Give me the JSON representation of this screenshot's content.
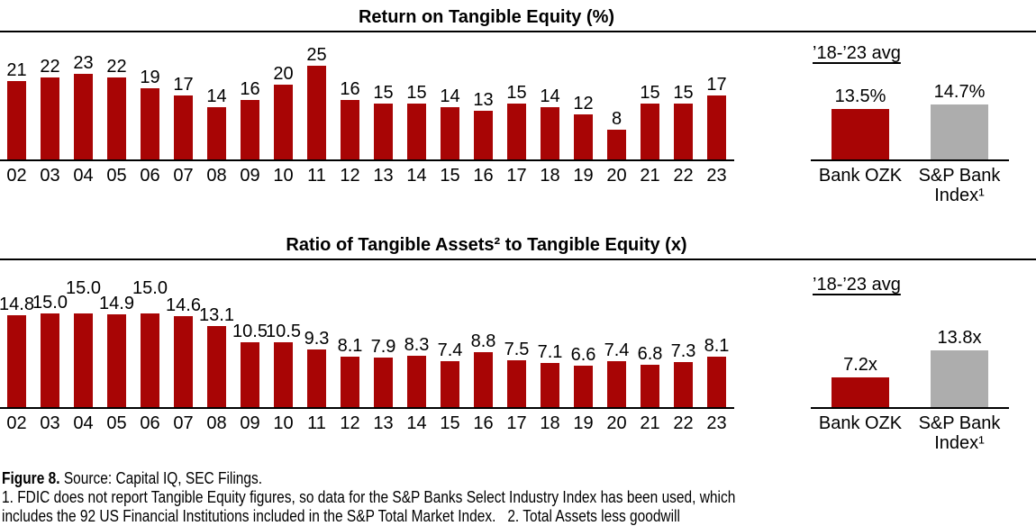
{
  "colors": {
    "bar_red": "#A80505",
    "bar_gray": "#ADADAD",
    "axis_black": "#000000"
  },
  "chart_data": [
    {
      "type": "bar",
      "title": "Return on Tangible Equity (%)",
      "categories": [
        "02",
        "03",
        "04",
        "05",
        "06",
        "07",
        "08",
        "09",
        "10",
        "11",
        "12",
        "13",
        "14",
        "15",
        "16",
        "17",
        "18",
        "19",
        "20",
        "21",
        "22",
        "23"
      ],
      "values": [
        21,
        22,
        23,
        22,
        19,
        17,
        14,
        16,
        20,
        25,
        16,
        15,
        15,
        14,
        13,
        15,
        14,
        12,
        8,
        15,
        15,
        17
      ],
      "value_labels": [
        "21",
        "22",
        "23",
        "22",
        "19",
        "17",
        "14",
        "16",
        "20",
        "25",
        "16",
        "15",
        "15",
        "14",
        "13",
        "15",
        "14",
        "12",
        "8",
        "15",
        "15",
        "17"
      ],
      "raised_label_indices": [],
      "xlabel": "",
      "ylabel": "",
      "ylim": [
        0,
        25
      ],
      "grid": false,
      "bar_color": "#A80505",
      "avg_panel": {
        "heading": "’18-’23 avg",
        "bars": [
          {
            "label": "Bank OZK",
            "value": 13.5,
            "display": "13.5%",
            "color": "#A80505"
          },
          {
            "label": "S&P Bank Index¹",
            "value": 14.7,
            "display": "14.7%",
            "color": "#ADADAD"
          }
        ]
      }
    },
    {
      "type": "bar",
      "title": "Ratio of Tangible Assets² to Tangible Equity (x)",
      "categories": [
        "02",
        "03",
        "04",
        "05",
        "06",
        "07",
        "08",
        "09",
        "10",
        "11",
        "12",
        "13",
        "14",
        "15",
        "16",
        "17",
        "18",
        "19",
        "20",
        "21",
        "22",
        "23"
      ],
      "values": [
        14.8,
        15.0,
        15.0,
        14.9,
        15.0,
        14.6,
        13.1,
        10.5,
        10.5,
        9.3,
        8.1,
        7.9,
        8.3,
        7.4,
        8.8,
        7.5,
        7.1,
        6.6,
        7.4,
        6.8,
        7.3,
        8.1
      ],
      "value_labels": [
        "14.8",
        "15.0",
        "15.0",
        "14.9",
        "15.0",
        "14.6",
        "13.1",
        "10.5",
        "10.5",
        "9.3",
        "8.1",
        "7.9",
        "8.3",
        "7.4",
        "8.8",
        "7.5",
        "7.1",
        "6.6",
        "7.4",
        "6.8",
        "7.3",
        "8.1"
      ],
      "raised_label_indices": [
        2,
        4
      ],
      "xlabel": "",
      "ylabel": "",
      "ylim": [
        0,
        15
      ],
      "grid": false,
      "bar_color": "#A80505",
      "avg_panel": {
        "heading": "’18-’23 avg",
        "bars": [
          {
            "label": "Bank OZK",
            "value": 7.2,
            "display": "7.2x",
            "color": "#A80505"
          },
          {
            "label": "S&P Bank Index¹",
            "value": 13.8,
            "display": "13.8x",
            "color": "#ADADAD"
          }
        ]
      }
    }
  ],
  "footer": {
    "figure_label": "Figure 8.",
    "source": " Source: Capital IQ, SEC Filings.",
    "note_line1": "1. FDIC does not report Tangible Equity figures, so data for the S&P Banks Select Industry Index has been used, which",
    "note_line2": "includes the 92 US Financial Institutions included in the S&P Total Market Index.   2. Total Assets less goodwill"
  }
}
